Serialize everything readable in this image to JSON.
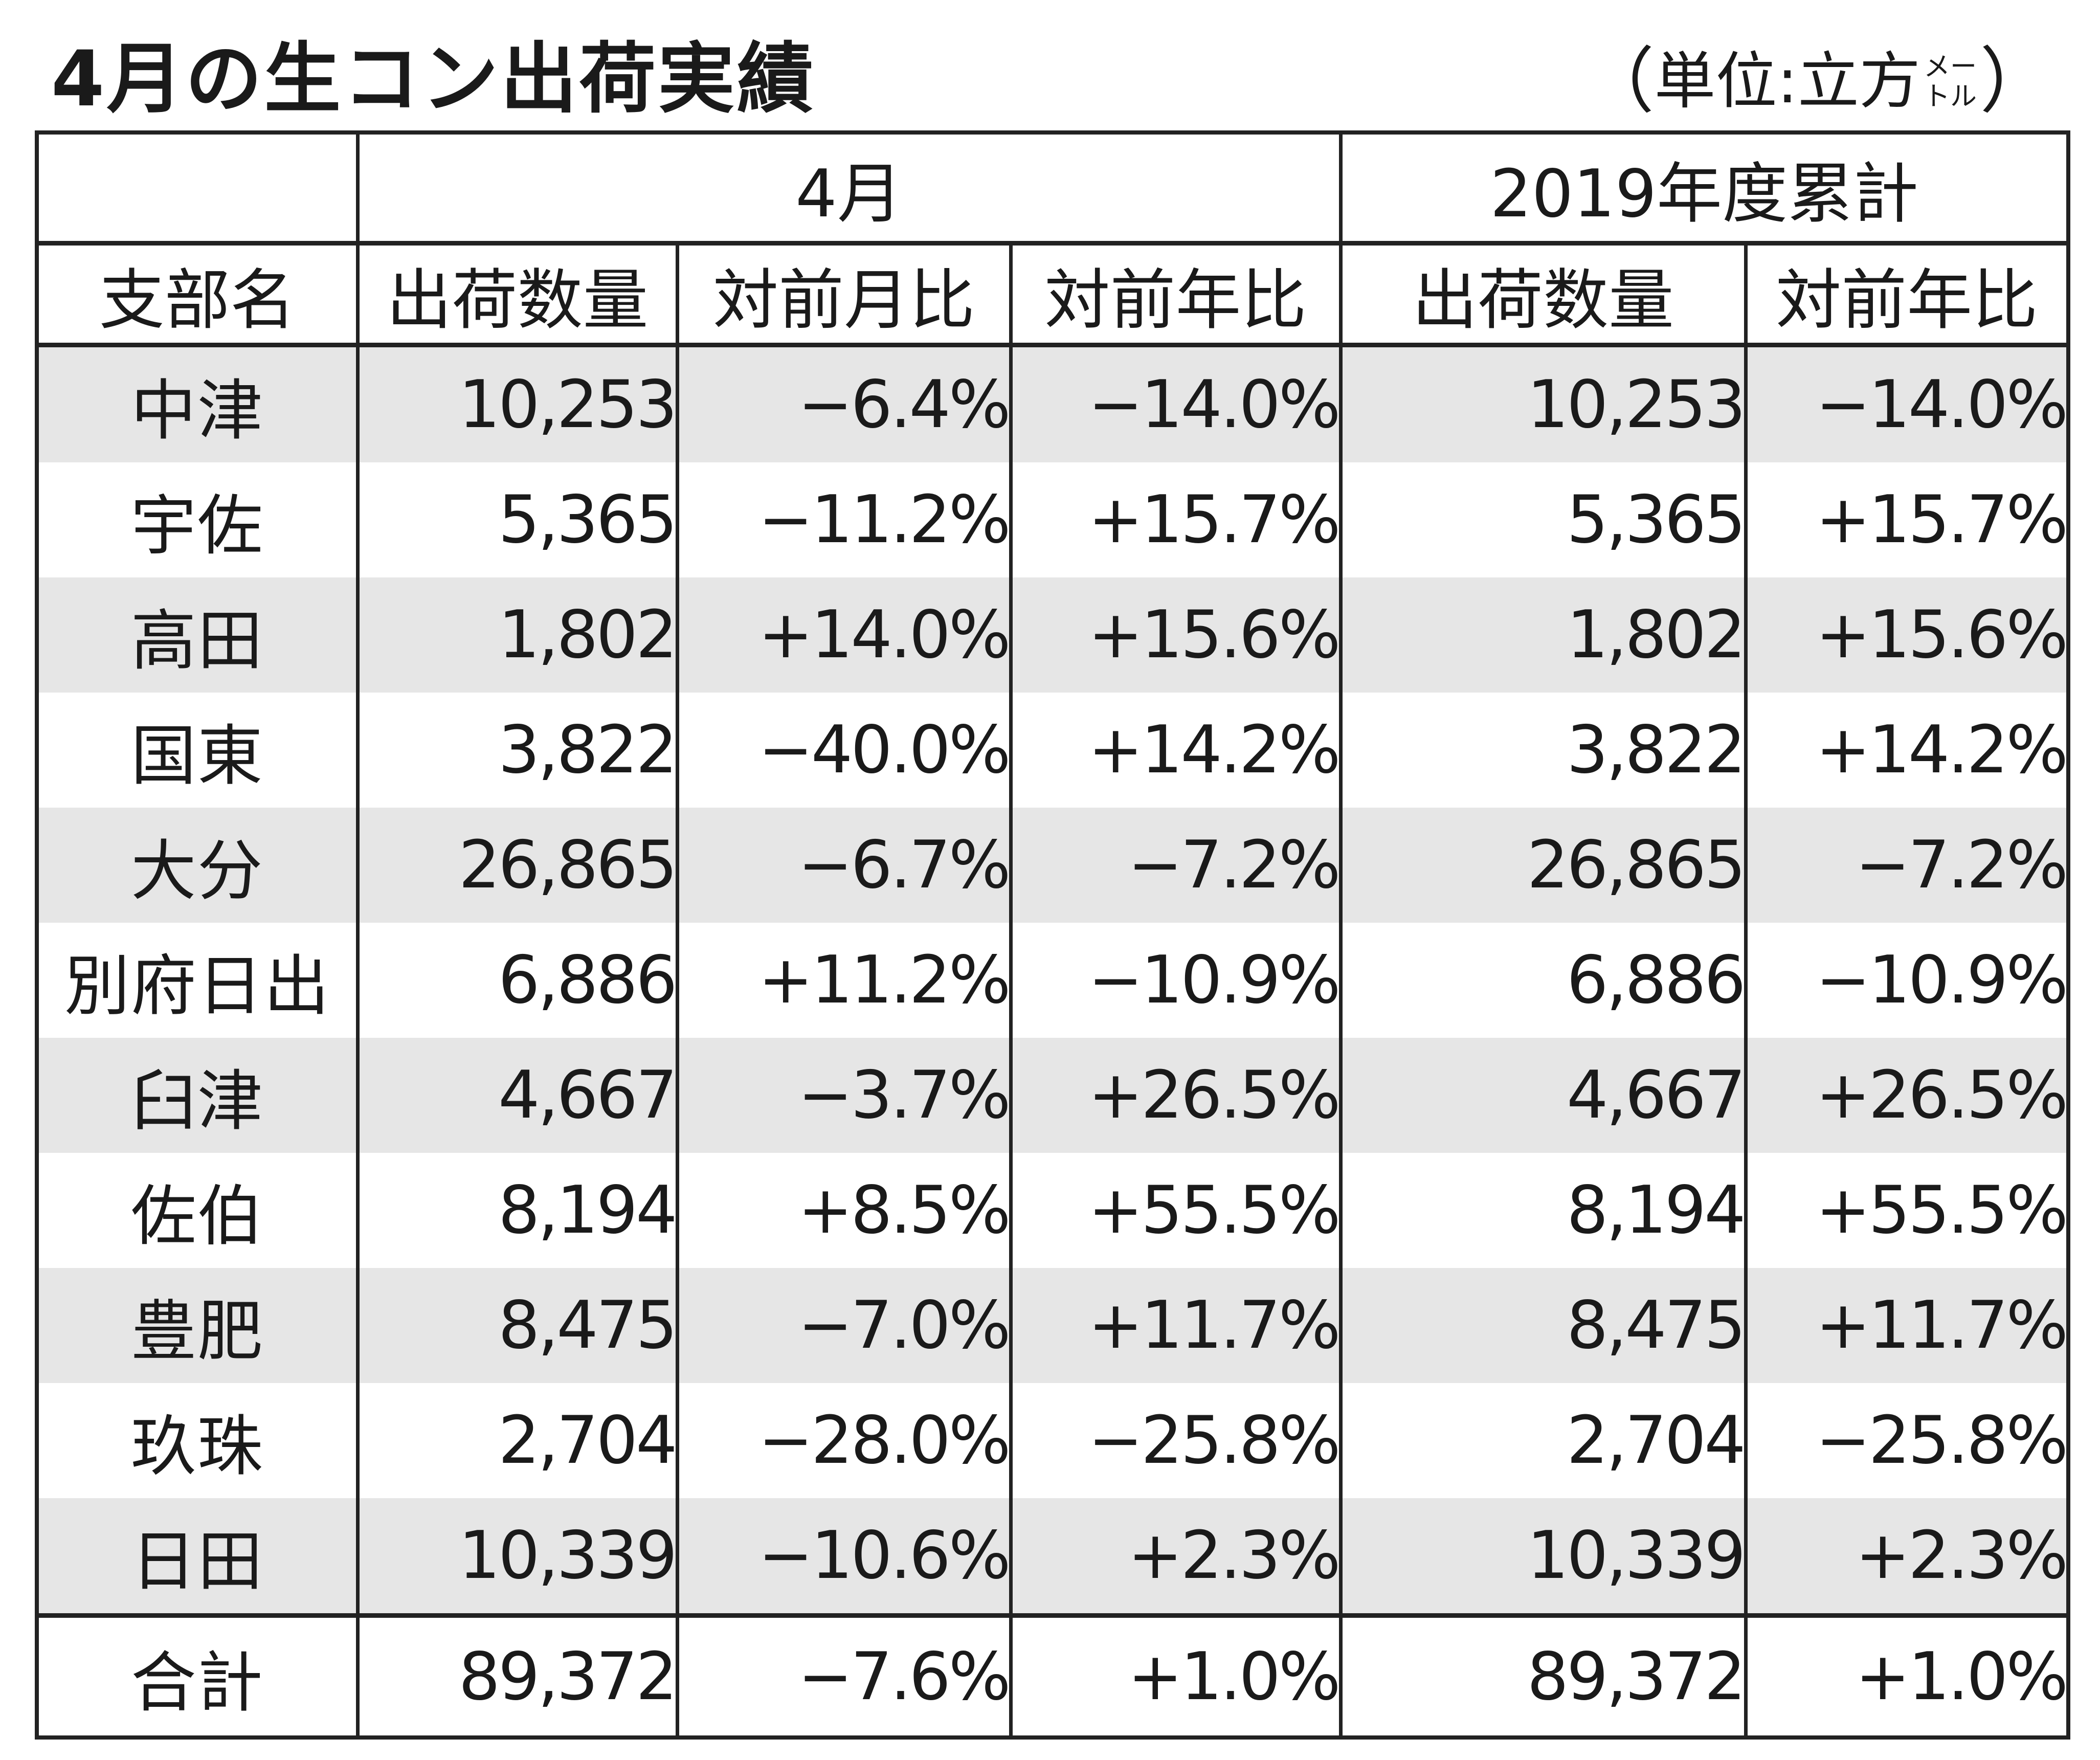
{
  "title": "4月の生コン出荷実績",
  "unit": {
    "open": "（",
    "text": "単位:立方",
    "top": "メー",
    "bottom": "トル",
    "close": "）"
  },
  "header": {
    "group_april": "4月",
    "group_fy": "2019年度累計",
    "columns": [
      "支部名",
      "出荷数量",
      "対前月比",
      "対前年比",
      "出荷数量",
      "対前年比"
    ]
  },
  "rows": [
    {
      "name": "中津",
      "apr_qty": "10,253",
      "apr_mom": "−6.4%",
      "apr_yoy": "−14.0%",
      "fy_qty": "10,253",
      "fy_yoy": "−14.0%"
    },
    {
      "name": "宇佐",
      "apr_qty": "5,365",
      "apr_mom": "−11.2%",
      "apr_yoy": "+15.7%",
      "fy_qty": "5,365",
      "fy_yoy": "+15.7%"
    },
    {
      "name": "高田",
      "apr_qty": "1,802",
      "apr_mom": "+14.0%",
      "apr_yoy": "+15.6%",
      "fy_qty": "1,802",
      "fy_yoy": "+15.6%"
    },
    {
      "name": "国東",
      "apr_qty": "3,822",
      "apr_mom": "−40.0%",
      "apr_yoy": "+14.2%",
      "fy_qty": "3,822",
      "fy_yoy": "+14.2%"
    },
    {
      "name": "大分",
      "apr_qty": "26,865",
      "apr_mom": "−6.7%",
      "apr_yoy": "−7.2%",
      "fy_qty": "26,865",
      "fy_yoy": "−7.2%"
    },
    {
      "name": "別府日出",
      "apr_qty": "6,886",
      "apr_mom": "+11.2%",
      "apr_yoy": "−10.9%",
      "fy_qty": "6,886",
      "fy_yoy": "−10.9%"
    },
    {
      "name": "臼津",
      "apr_qty": "4,667",
      "apr_mom": "−3.7%",
      "apr_yoy": "+26.5%",
      "fy_qty": "4,667",
      "fy_yoy": "+26.5%"
    },
    {
      "name": "佐伯",
      "apr_qty": "8,194",
      "apr_mom": "+8.5%",
      "apr_yoy": "+55.5%",
      "fy_qty": "8,194",
      "fy_yoy": "+55.5%"
    },
    {
      "name": "豊肥",
      "apr_qty": "8,475",
      "apr_mom": "−7.0%",
      "apr_yoy": "+11.7%",
      "fy_qty": "8,475",
      "fy_yoy": "+11.7%"
    },
    {
      "name": "玖珠",
      "apr_qty": "2,704",
      "apr_mom": "−28.0%",
      "apr_yoy": "−25.8%",
      "fy_qty": "2,704",
      "fy_yoy": "−25.8%"
    },
    {
      "name": "日田",
      "apr_qty": "10,339",
      "apr_mom": "−10.6%",
      "apr_yoy": "+2.3%",
      "fy_qty": "10,339",
      "fy_yoy": "+2.3%"
    }
  ],
  "total": {
    "name": "合計",
    "apr_qty": "89,372",
    "apr_mom": "−7.6%",
    "apr_yoy": "+1.0%",
    "fy_qty": "89,372",
    "fy_yoy": "+1.0%"
  },
  "colors": {
    "shaded_row": "#e6e6e6",
    "border": "#222222",
    "text": "#1a1a1a"
  }
}
